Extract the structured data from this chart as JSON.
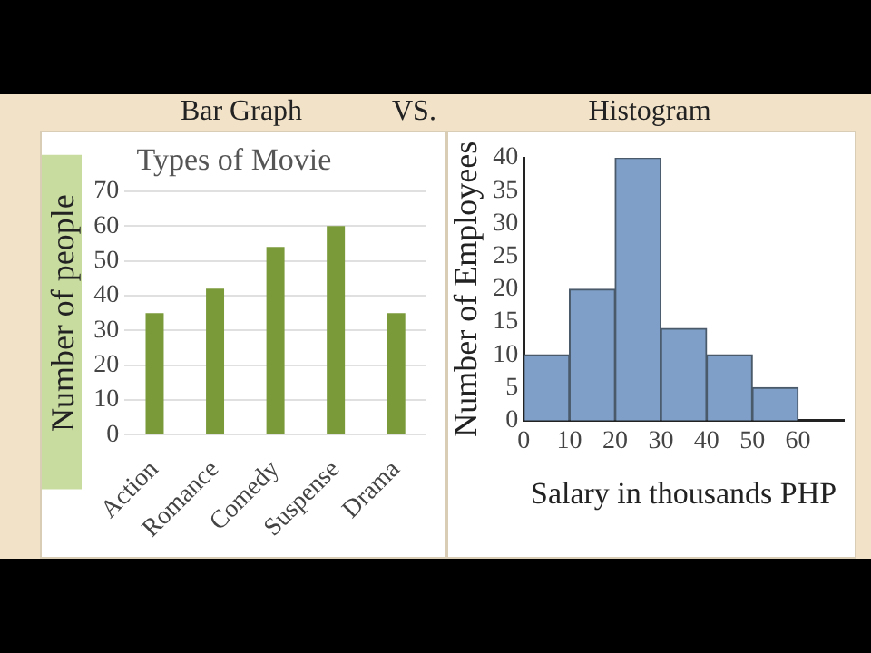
{
  "chart_data": [
    {
      "type": "bar",
      "title": "Bar Graph",
      "subtitle": "Types of Movie",
      "ylabel": "Number of people",
      "categories": [
        "Action",
        "Romance",
        "Comedy",
        "Suspense",
        "Drama"
      ],
      "values": [
        35,
        42,
        54,
        60,
        35
      ],
      "color": "#7a9a3a",
      "ylim": [
        0,
        70
      ],
      "yticks": [
        0,
        10,
        20,
        30,
        40,
        50,
        60,
        70
      ],
      "grid": "y",
      "annotations": [
        "VS."
      ]
    },
    {
      "type": "histogram",
      "title": "Histogram",
      "xlabel": "Salary in thousands PHP",
      "ylabel": "Number of Employees",
      "bins": [
        0,
        10,
        20,
        30,
        40,
        50,
        60
      ],
      "values": [
        10,
        20,
        40,
        14,
        10,
        5
      ],
      "color": "#7f9fc8",
      "xlim": [
        0,
        70
      ],
      "xticks": [
        0,
        10,
        20,
        30,
        40,
        50,
        60
      ],
      "ylim": [
        0,
        40
      ],
      "yticks": [
        0,
        5,
        10,
        15,
        20,
        25,
        30,
        35,
        40
      ]
    }
  ]
}
